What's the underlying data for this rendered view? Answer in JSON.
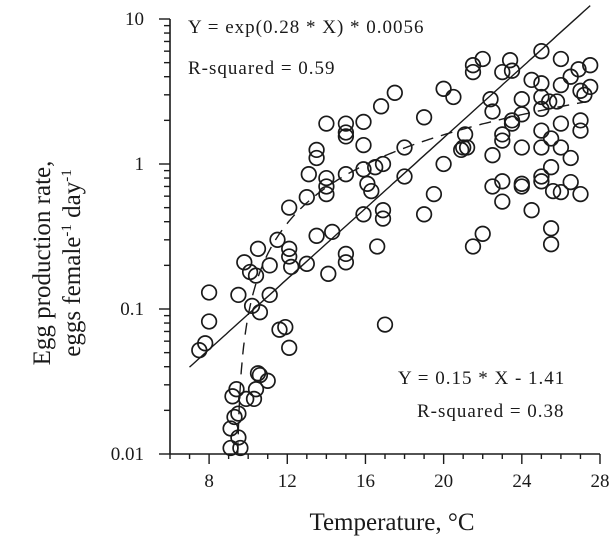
{
  "chart_data": {
    "type": "scatter",
    "title": "",
    "xlabel": "Temperature, °C",
    "ylabel_line1": "Egg production rate,",
    "ylabel_line2_prefix": "eggs female",
    "ylabel_line2_sup1": "-1",
    "ylabel_line2_mid": " day",
    "ylabel_line2_sup2": "-1",
    "xlim": [
      6,
      28
    ],
    "ylim": [
      0.01,
      10
    ],
    "yscale": "log",
    "grid": false,
    "x_ticks": [
      8,
      12,
      16,
      20,
      24,
      28
    ],
    "x_tick_labels": [
      "8",
      "12",
      "16",
      "20",
      "24",
      "28"
    ],
    "y_ticks": [
      0.01,
      0.1,
      1,
      10
    ],
    "y_tick_labels": [
      "0.01",
      "0.1",
      "1",
      "10"
    ],
    "exp_fit": {
      "equation": "Y = exp(0.28 * X) * 0.0056",
      "r_squared": "R-squared = 0.59",
      "a": 0.0056,
      "b": 0.28,
      "x_range": [
        7,
        27.5
      ]
    },
    "dashed_fit": {
      "equation": "Y = 0.15 * X - 1.41",
      "r_squared": "R-squared = 0.38",
      "slope": 0.15,
      "intercept": -1.41,
      "x_range": [
        9.45,
        27.5
      ]
    },
    "points": [
      {
        "x": 7.5,
        "y": 0.052
      },
      {
        "x": 7.8,
        "y": 0.058
      },
      {
        "x": 8.0,
        "y": 0.13
      },
      {
        "x": 8.0,
        "y": 0.082
      },
      {
        "x": 9.1,
        "y": 0.011
      },
      {
        "x": 9.1,
        "y": 0.015
      },
      {
        "x": 9.2,
        "y": 0.025
      },
      {
        "x": 9.3,
        "y": 0.018
      },
      {
        "x": 9.4,
        "y": 0.028
      },
      {
        "x": 9.5,
        "y": 0.019
      },
      {
        "x": 9.5,
        "y": 0.013
      },
      {
        "x": 9.6,
        "y": 0.011
      },
      {
        "x": 9.5,
        "y": 0.125
      },
      {
        "x": 9.8,
        "y": 0.21
      },
      {
        "x": 9.9,
        "y": 0.024
      },
      {
        "x": 10.1,
        "y": 0.18
      },
      {
        "x": 10.2,
        "y": 0.105
      },
      {
        "x": 10.3,
        "y": 0.024
      },
      {
        "x": 10.4,
        "y": 0.028
      },
      {
        "x": 10.4,
        "y": 0.17
      },
      {
        "x": 10.5,
        "y": 0.036
      },
      {
        "x": 10.5,
        "y": 0.26
      },
      {
        "x": 10.6,
        "y": 0.035
      },
      {
        "x": 10.6,
        "y": 0.095
      },
      {
        "x": 11.0,
        "y": 0.032
      },
      {
        "x": 11.1,
        "y": 0.2
      },
      {
        "x": 11.1,
        "y": 0.125
      },
      {
        "x": 11.5,
        "y": 0.3
      },
      {
        "x": 11.6,
        "y": 0.072
      },
      {
        "x": 11.9,
        "y": 0.075
      },
      {
        "x": 12.1,
        "y": 0.054
      },
      {
        "x": 12.1,
        "y": 0.5
      },
      {
        "x": 12.1,
        "y": 0.26
      },
      {
        "x": 12.1,
        "y": 0.23
      },
      {
        "x": 12.2,
        "y": 0.195
      },
      {
        "x": 13.0,
        "y": 0.59
      },
      {
        "x": 13.0,
        "y": 0.205
      },
      {
        "x": 13.1,
        "y": 0.85
      },
      {
        "x": 13.5,
        "y": 1.25
      },
      {
        "x": 13.5,
        "y": 1.1
      },
      {
        "x": 13.5,
        "y": 0.32
      },
      {
        "x": 14.0,
        "y": 1.9
      },
      {
        "x": 14.0,
        "y": 0.8
      },
      {
        "x": 14.0,
        "y": 0.7
      },
      {
        "x": 14.0,
        "y": 0.62
      },
      {
        "x": 14.1,
        "y": 0.175
      },
      {
        "x": 14.3,
        "y": 0.34
      },
      {
        "x": 15.0,
        "y": 1.9
      },
      {
        "x": 15.0,
        "y": 1.65
      },
      {
        "x": 15.0,
        "y": 1.55
      },
      {
        "x": 15.0,
        "y": 0.85
      },
      {
        "x": 15.0,
        "y": 0.24
      },
      {
        "x": 15.0,
        "y": 0.21
      },
      {
        "x": 15.9,
        "y": 1.95
      },
      {
        "x": 15.9,
        "y": 1.35
      },
      {
        "x": 15.9,
        "y": 0.92
      },
      {
        "x": 15.9,
        "y": 0.45
      },
      {
        "x": 16.1,
        "y": 0.73
      },
      {
        "x": 16.3,
        "y": 0.65
      },
      {
        "x": 16.5,
        "y": 0.95
      },
      {
        "x": 16.6,
        "y": 0.27
      },
      {
        "x": 16.8,
        "y": 2.5
      },
      {
        "x": 16.9,
        "y": 1.0
      },
      {
        "x": 16.9,
        "y": 0.48
      },
      {
        "x": 16.9,
        "y": 0.42
      },
      {
        "x": 17.0,
        "y": 0.078
      },
      {
        "x": 17.5,
        "y": 3.1
      },
      {
        "x": 18.0,
        "y": 1.3
      },
      {
        "x": 18.0,
        "y": 0.82
      },
      {
        "x": 19.0,
        "y": 2.1
      },
      {
        "x": 19.0,
        "y": 0.45
      },
      {
        "x": 19.5,
        "y": 0.62
      },
      {
        "x": 20.0,
        "y": 3.3
      },
      {
        "x": 20.0,
        "y": 1.0
      },
      {
        "x": 20.5,
        "y": 2.9
      },
      {
        "x": 20.9,
        "y": 1.25
      },
      {
        "x": 21.0,
        "y": 1.3
      },
      {
        "x": 21.1,
        "y": 1.6
      },
      {
        "x": 21.2,
        "y": 1.3
      },
      {
        "x": 21.5,
        "y": 4.8
      },
      {
        "x": 21.5,
        "y": 4.3
      },
      {
        "x": 21.5,
        "y": 0.27
      },
      {
        "x": 22.0,
        "y": 5.3
      },
      {
        "x": 22.0,
        "y": 0.33
      },
      {
        "x": 22.4,
        "y": 2.8
      },
      {
        "x": 22.5,
        "y": 2.3
      },
      {
        "x": 22.5,
        "y": 1.15
      },
      {
        "x": 22.5,
        "y": 0.7
      },
      {
        "x": 23.0,
        "y": 4.3
      },
      {
        "x": 23.0,
        "y": 1.6
      },
      {
        "x": 23.0,
        "y": 1.45
      },
      {
        "x": 23.0,
        "y": 0.76
      },
      {
        "x": 23.0,
        "y": 0.55
      },
      {
        "x": 23.4,
        "y": 5.2
      },
      {
        "x": 23.5,
        "y": 4.4
      },
      {
        "x": 23.5,
        "y": 2.0
      },
      {
        "x": 23.5,
        "y": 1.9
      },
      {
        "x": 24.0,
        "y": 2.8
      },
      {
        "x": 24.0,
        "y": 2.2
      },
      {
        "x": 24.0,
        "y": 1.3
      },
      {
        "x": 24.0,
        "y": 0.73
      },
      {
        "x": 24.0,
        "y": 0.7
      },
      {
        "x": 24.5,
        "y": 3.8
      },
      {
        "x": 24.5,
        "y": 0.48
      },
      {
        "x": 25.0,
        "y": 6.0
      },
      {
        "x": 25.0,
        "y": 3.6
      },
      {
        "x": 25.0,
        "y": 2.9
      },
      {
        "x": 25.0,
        "y": 2.4
      },
      {
        "x": 25.0,
        "y": 1.7
      },
      {
        "x": 25.0,
        "y": 1.3
      },
      {
        "x": 25.0,
        "y": 0.82
      },
      {
        "x": 25.0,
        "y": 0.76
      },
      {
        "x": 25.4,
        "y": 2.7
      },
      {
        "x": 25.5,
        "y": 1.5
      },
      {
        "x": 25.5,
        "y": 0.95
      },
      {
        "x": 25.5,
        "y": 0.36
      },
      {
        "x": 25.5,
        "y": 0.28
      },
      {
        "x": 25.6,
        "y": 0.65
      },
      {
        "x": 25.8,
        "y": 2.7
      },
      {
        "x": 26.0,
        "y": 5.3
      },
      {
        "x": 26.0,
        "y": 3.5
      },
      {
        "x": 26.0,
        "y": 1.9
      },
      {
        "x": 26.0,
        "y": 1.3
      },
      {
        "x": 26.0,
        "y": 0.64
      },
      {
        "x": 26.5,
        "y": 4.0
      },
      {
        "x": 26.5,
        "y": 1.1
      },
      {
        "x": 26.5,
        "y": 0.75
      },
      {
        "x": 26.9,
        "y": 4.5
      },
      {
        "x": 27.0,
        "y": 3.2
      },
      {
        "x": 27.0,
        "y": 2.0
      },
      {
        "x": 27.0,
        "y": 1.7
      },
      {
        "x": 27.0,
        "y": 0.62
      },
      {
        "x": 27.2,
        "y": 3.0
      },
      {
        "x": 27.5,
        "y": 4.8
      },
      {
        "x": 27.5,
        "y": 3.4
      }
    ]
  }
}
